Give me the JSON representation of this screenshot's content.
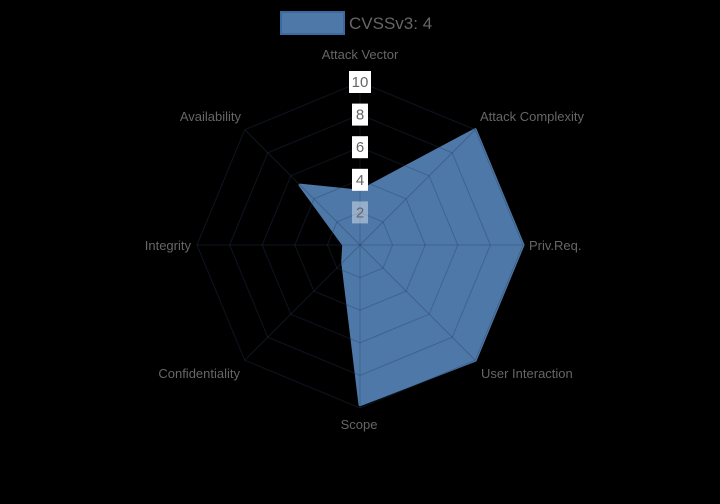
{
  "chart_data": {
    "type": "radar",
    "title": "",
    "legend": [
      {
        "label": "CVSSv3: 4",
        "color": "#4e78a8"
      }
    ],
    "legend_position": "top",
    "categories": [
      "Attack Vector",
      "Attack Complexity",
      "Priv.Req.",
      "User Interaction",
      "Scope",
      "Confidentiality",
      "Integrity",
      "Availability"
    ],
    "series": [
      {
        "name": "CVSSv3: 4",
        "values": [
          3.3,
          10,
          10,
          10,
          9.8,
          1.5,
          1,
          5.2
        ],
        "color": "#4e78a8"
      }
    ],
    "r_ticks": [
      "2",
      "4",
      "6",
      "8",
      "10"
    ],
    "rlim": [
      0,
      10
    ],
    "grid": true
  }
}
